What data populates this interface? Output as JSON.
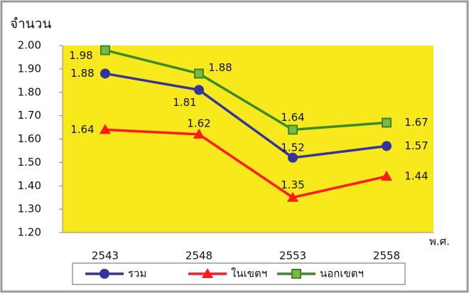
{
  "chart_data": {
    "type": "line",
    "y_title": "จำนวน",
    "x_title": "พ.ศ.",
    "categories": [
      "2543",
      "2548",
      "2553",
      "2558"
    ],
    "ylim": [
      1.2,
      2.0
    ],
    "yticks": [
      {
        "value": 1.2,
        "label": "1.20"
      },
      {
        "value": 1.3,
        "label": "1.30"
      },
      {
        "value": 1.4,
        "label": "1.40"
      },
      {
        "value": 1.5,
        "label": "1.50"
      },
      {
        "value": 1.6,
        "label": "1.60"
      },
      {
        "value": 1.7,
        "label": "1.70"
      },
      {
        "value": 1.8,
        "label": "1.80"
      },
      {
        "value": 1.9,
        "label": "1.90"
      },
      {
        "value": 2.0,
        "label": "2.00"
      }
    ],
    "grid": false,
    "background": "#f7e91c",
    "legend": "bottom",
    "series": [
      {
        "name": "รวม",
        "color": "#34349e",
        "marker": "circle",
        "values": [
          1.88,
          1.81,
          1.52,
          1.57
        ]
      },
      {
        "name": "ในเขตฯ",
        "color": "#ff1a1a",
        "marker": "triangle",
        "values": [
          1.64,
          1.62,
          1.35,
          1.44
        ]
      },
      {
        "name": "นอกเขตฯ",
        "color": "#3a8a28",
        "marker": "square",
        "values": [
          1.98,
          1.88,
          1.64,
          1.67
        ]
      }
    ]
  }
}
